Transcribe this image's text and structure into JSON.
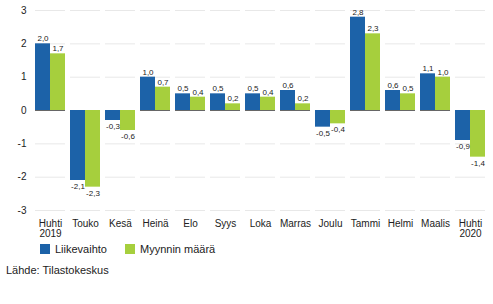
{
  "chart_data": {
    "type": "bar",
    "categories": [
      "Huhti\n2019",
      "Touko",
      "Kesä",
      "Heinä",
      "Elo",
      "Syys",
      "Loka",
      "Marras",
      "Joulu",
      "Tammi",
      "Helmi",
      "Maalis",
      "Huhti\n2020"
    ],
    "series": [
      {
        "name": "Liikevaihto",
        "color": "#1c62a8",
        "values": [
          2.0,
          -2.1,
          -0.3,
          1.0,
          0.5,
          0.5,
          0.5,
          0.6,
          -0.5,
          2.8,
          0.6,
          1.1,
          -0.9
        ],
        "value_labels": [
          "2,0",
          "-2,1",
          "-0,3",
          "1,0",
          "0,5",
          "0,5",
          "0,5",
          "0,6",
          "-0,5",
          "2,8",
          "0,6",
          "1,1",
          "-0,9"
        ]
      },
      {
        "name": "Myynnin määrä",
        "color": "#a6cf3d",
        "values": [
          1.7,
          -2.3,
          -0.6,
          0.7,
          0.4,
          0.2,
          0.4,
          0.2,
          -0.4,
          2.3,
          0.5,
          1.0,
          -1.4
        ],
        "value_labels": [
          "1,7",
          "-2,3",
          "-0,6",
          "0,7",
          "0,4",
          "0,2",
          "0,4",
          "0,2",
          "-0,4",
          "2,3",
          "0,5",
          "1,0",
          "-1,4"
        ]
      }
    ],
    "ylim": [
      -3,
      3
    ],
    "yticks": [
      -3,
      -2,
      -1,
      0,
      1,
      2,
      3
    ],
    "grid": true,
    "data_labels": true,
    "legend": "bottom",
    "caption": "Lähde: Tilastokeskus"
  }
}
